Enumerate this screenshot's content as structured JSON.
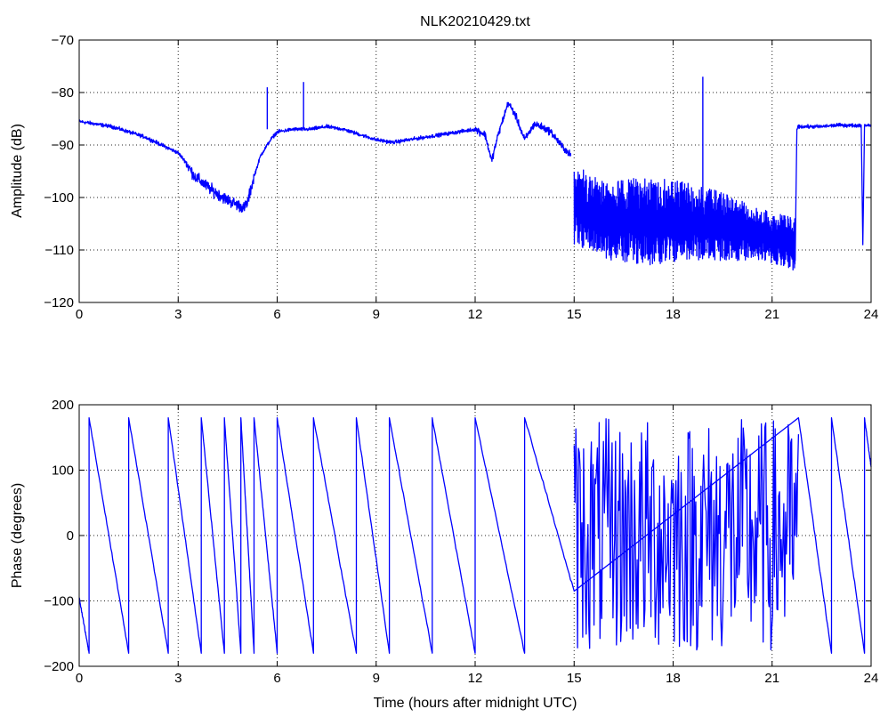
{
  "figure": {
    "title": "NLK20210429.txt"
  },
  "colors": {
    "series": "#0000ff",
    "axes": "#000000",
    "background": "#ffffff"
  },
  "chart_data": [
    {
      "type": "line",
      "title": "NLK20210429.txt",
      "xlabel": "",
      "ylabel": "Amplitude (dB)",
      "xlim": [
        0,
        24
      ],
      "ylim": [
        -120,
        -70
      ],
      "xticks": [
        0,
        3,
        6,
        9,
        12,
        15,
        18,
        21,
        24
      ],
      "yticks": [
        -120,
        -110,
        -100,
        -90,
        -80,
        -70
      ],
      "grid": true,
      "series": [
        {
          "x": [
            0,
            0.5,
            1.0,
            1.5,
            2.0,
            2.5,
            3.0,
            3.2,
            3.5,
            4.0,
            4.5,
            5.0,
            5.1,
            5.3,
            5.5,
            5.8,
            6.0,
            6.5,
            7.0,
            7.5,
            8.0,
            8.5,
            9.0,
            9.5,
            10.0,
            10.5,
            11.0,
            11.5,
            12.0,
            12.3,
            12.5,
            12.7,
            13.0,
            13.2,
            13.5,
            13.8,
            14.0,
            14.3,
            14.6,
            14.9
          ],
          "y": [
            -85.5,
            -86,
            -86.5,
            -87.5,
            -88.5,
            -90,
            -91.5,
            -93,
            -96,
            -98.5,
            -100.5,
            -102,
            -101,
            -96,
            -92,
            -89,
            -87.5,
            -87,
            -87,
            -86.5,
            -87,
            -88,
            -89,
            -89.5,
            -89,
            -88.5,
            -88,
            -87.5,
            -87,
            -88,
            -93,
            -88,
            -82,
            -84,
            -89,
            -86,
            -86.5,
            -87.5,
            -90,
            -92
          ]
        },
        {
          "x": [
            15.0,
            16.0,
            17.0,
            18.0,
            19.0,
            20.0,
            21.0,
            21.5,
            21.7,
            21.75,
            21.8,
            22.5,
            23.0,
            23.5,
            23.7,
            23.75,
            23.8,
            24.0
          ],
          "y": [
            -101,
            -103,
            -105,
            -104,
            -105,
            -106,
            -107,
            -110,
            -112,
            -87,
            -86.5,
            -86.5,
            -86.2,
            -86.3,
            -86.2,
            -109,
            -86.2,
            -86.2
          ]
        }
      ],
      "spikes": [
        {
          "x": 5.7,
          "y": -79
        },
        {
          "x": 6.8,
          "y": -78
        },
        {
          "x": 18.9,
          "y": -77
        }
      ],
      "noise_band": {
        "x_start": 15.0,
        "x_end": 21.7,
        "top": [
          -94,
          -97,
          -96,
          -97,
          -99,
          -102,
          -104
        ],
        "bottom": [
          -109,
          -112,
          -113,
          -112,
          -112,
          -112,
          -114
        ]
      }
    },
    {
      "type": "line",
      "title": "",
      "xlabel": "Time (hours after midnight UTC)",
      "ylabel": "Phase (degrees)",
      "xlim": [
        0,
        24
      ],
      "ylim": [
        -200,
        200
      ],
      "xticks": [
        0,
        3,
        6,
        9,
        12,
        15,
        18,
        21,
        24
      ],
      "yticks": [
        -200,
        -100,
        0,
        100,
        200
      ],
      "grid": true,
      "wraps": [
        {
          "start": 0.0,
          "end": 0.3,
          "y0": -95,
          "y1": -180
        },
        {
          "start": 0.3,
          "end": 1.5,
          "y0": 180,
          "y1": -180
        },
        {
          "start": 1.5,
          "end": 2.7,
          "y0": 180,
          "y1": -180
        },
        {
          "start": 2.7,
          "end": 3.7,
          "y0": 180,
          "y1": -180
        },
        {
          "start": 3.7,
          "end": 4.4,
          "y0": 180,
          "y1": -180
        },
        {
          "start": 4.4,
          "end": 4.9,
          "y0": 180,
          "y1": -180
        },
        {
          "start": 4.9,
          "end": 5.3,
          "y0": 180,
          "y1": -180
        },
        {
          "start": 5.3,
          "end": 6.0,
          "y0": 180,
          "y1": -180
        },
        {
          "start": 6.0,
          "end": 7.1,
          "y0": 180,
          "y1": -180
        },
        {
          "start": 7.1,
          "end": 8.4,
          "y0": 180,
          "y1": -180
        },
        {
          "start": 8.4,
          "end": 9.4,
          "y0": 180,
          "y1": -180
        },
        {
          "start": 9.4,
          "end": 10.7,
          "y0": 180,
          "y1": -180
        },
        {
          "start": 10.7,
          "end": 12.0,
          "y0": 180,
          "y1": -180
        },
        {
          "start": 12.0,
          "end": 13.5,
          "y0": 180,
          "y1": -180
        },
        {
          "start": 13.5,
          "end": 15.0,
          "y0": 180,
          "y1": -85
        },
        {
          "start": 21.8,
          "end": 22.8,
          "y0": 180,
          "y1": -180
        },
        {
          "start": 22.8,
          "end": 23.8,
          "y0": 180,
          "y1": -180
        },
        {
          "start": 23.8,
          "end": 24.0,
          "y0": 180,
          "y1": 105
        }
      ],
      "noisy_segment": {
        "x_start": 15.0,
        "x_end": 21.8,
        "ymin": -180,
        "ymax": 180
      }
    }
  ]
}
